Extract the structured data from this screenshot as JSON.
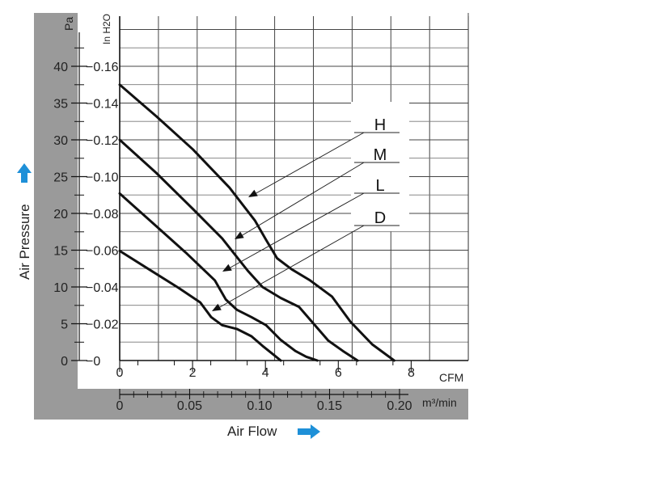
{
  "chart_data": {
    "type": "line",
    "xlabel": "Air Flow",
    "ylabel": "Air Pressure",
    "x_unit_primary": "CFM",
    "x_unit_secondary": "m³/min",
    "y_unit_left": "Pa",
    "y_unit_right": "In H2O",
    "xlim": [
      0,
      9.5
    ],
    "ylim": [
      0,
      47.5
    ],
    "x_ticks_cfm": [
      "0",
      "2",
      "4",
      "6",
      "8"
    ],
    "x_ticks_m3min": [
      "0",
      "0.05",
      "0.10",
      "0.15",
      "0.20"
    ],
    "y_ticks_pa": [
      "0",
      "5",
      "10",
      "15",
      "20",
      "25",
      "30",
      "35",
      "40"
    ],
    "y_ticks_inh2o": [
      "0",
      "0.02",
      "0.04",
      "0.06",
      "0.08",
      "0.10",
      "0.12",
      "0.14",
      "0.16"
    ],
    "grid": true,
    "legend": "top-right callout boxes with arrows",
    "series": [
      {
        "name": "H",
        "x": [
          0,
          1.0,
          2.0,
          3.0,
          3.7,
          4.0,
          4.3,
          4.7,
          5.2,
          5.8,
          6.3,
          6.9,
          7.5
        ],
        "y": [
          37.5,
          33.2,
          28.7,
          23.5,
          19.0,
          16.4,
          13.9,
          12.4,
          10.9,
          8.7,
          5.3,
          2.2,
          0
        ]
      },
      {
        "name": "M",
        "x": [
          0,
          1.0,
          2.0,
          2.8,
          3.1,
          3.5,
          3.9,
          4.4,
          4.9,
          5.3,
          5.7,
          6.1,
          6.5
        ],
        "y": [
          30.0,
          25.5,
          20.6,
          16.6,
          14.7,
          12.2,
          10.0,
          8.5,
          7.3,
          5.0,
          2.7,
          1.3,
          0
        ]
      },
      {
        "name": "L",
        "x": [
          0,
          0.9,
          1.8,
          2.6,
          2.9,
          3.2,
          3.6,
          4.0,
          4.4,
          4.8,
          5.1,
          5.4
        ],
        "y": [
          22.7,
          18.7,
          14.7,
          10.9,
          8.3,
          6.9,
          5.9,
          4.8,
          2.8,
          1.3,
          0.5,
          0
        ]
      },
      {
        "name": "D",
        "x": [
          0,
          0.8,
          1.6,
          2.2,
          2.5,
          2.8,
          3.2,
          3.6,
          3.9,
          4.2,
          4.4
        ],
        "y": [
          14.9,
          12.4,
          9.9,
          7.9,
          5.9,
          4.8,
          4.3,
          3.3,
          2.0,
          0.8,
          0
        ]
      }
    ]
  }
}
